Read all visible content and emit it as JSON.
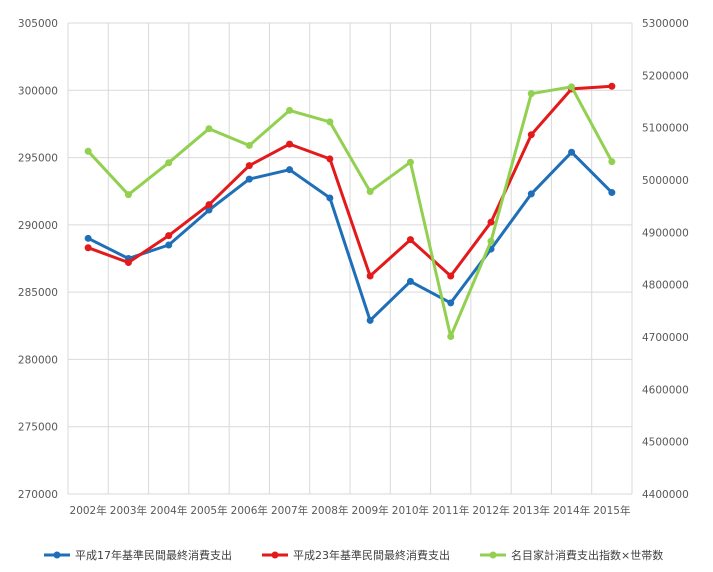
{
  "chart_data": {
    "type": "line",
    "categories": [
      "2002年",
      "2003年",
      "2004年",
      "2005年",
      "2006年",
      "2007年",
      "2008年",
      "2009年",
      "2010年",
      "2011年",
      "2012年",
      "2013年",
      "2014年",
      "2015年"
    ],
    "y_left": {
      "min": 270000,
      "max": 305000,
      "step": 5000,
      "ticks": [
        "270000",
        "275000",
        "280000",
        "285000",
        "290000",
        "295000",
        "300000",
        "305000"
      ]
    },
    "y_right": {
      "min": 4400000,
      "max": 5300000,
      "step": 100000,
      "ticks": [
        "4400000",
        "4500000",
        "4600000",
        "4700000",
        "4800000",
        "4900000",
        "5000000",
        "5100000",
        "5200000",
        "5300000"
      ]
    },
    "grid": true,
    "legend_position": "bottom",
    "series": [
      {
        "name": "平成17年基準民間最終消費支出",
        "axis": "left",
        "color": "#1f6fb8",
        "values": [
          289000,
          287500,
          288500,
          291100,
          293400,
          294100,
          292000,
          282900,
          285800,
          284200,
          288200,
          292300,
          295400,
          292400
        ]
      },
      {
        "name": "平成23年基準民間最終消費支出",
        "axis": "left",
        "color": "#e31a1c",
        "values": [
          288300,
          287200,
          289200,
          291500,
          294400,
          296000,
          294900,
          286200,
          288900,
          286200,
          290200,
          296700,
          300100,
          300300
        ]
      },
      {
        "name": "名目家計消費支出指数×世帯数",
        "axis": "right",
        "color": "#92d050",
        "values": [
          5055000,
          4972000,
          5033000,
          5098000,
          5066000,
          5133000,
          5111000,
          4978000,
          5034000,
          4701000,
          4883000,
          5165000,
          5178000,
          5035000
        ]
      }
    ]
  }
}
